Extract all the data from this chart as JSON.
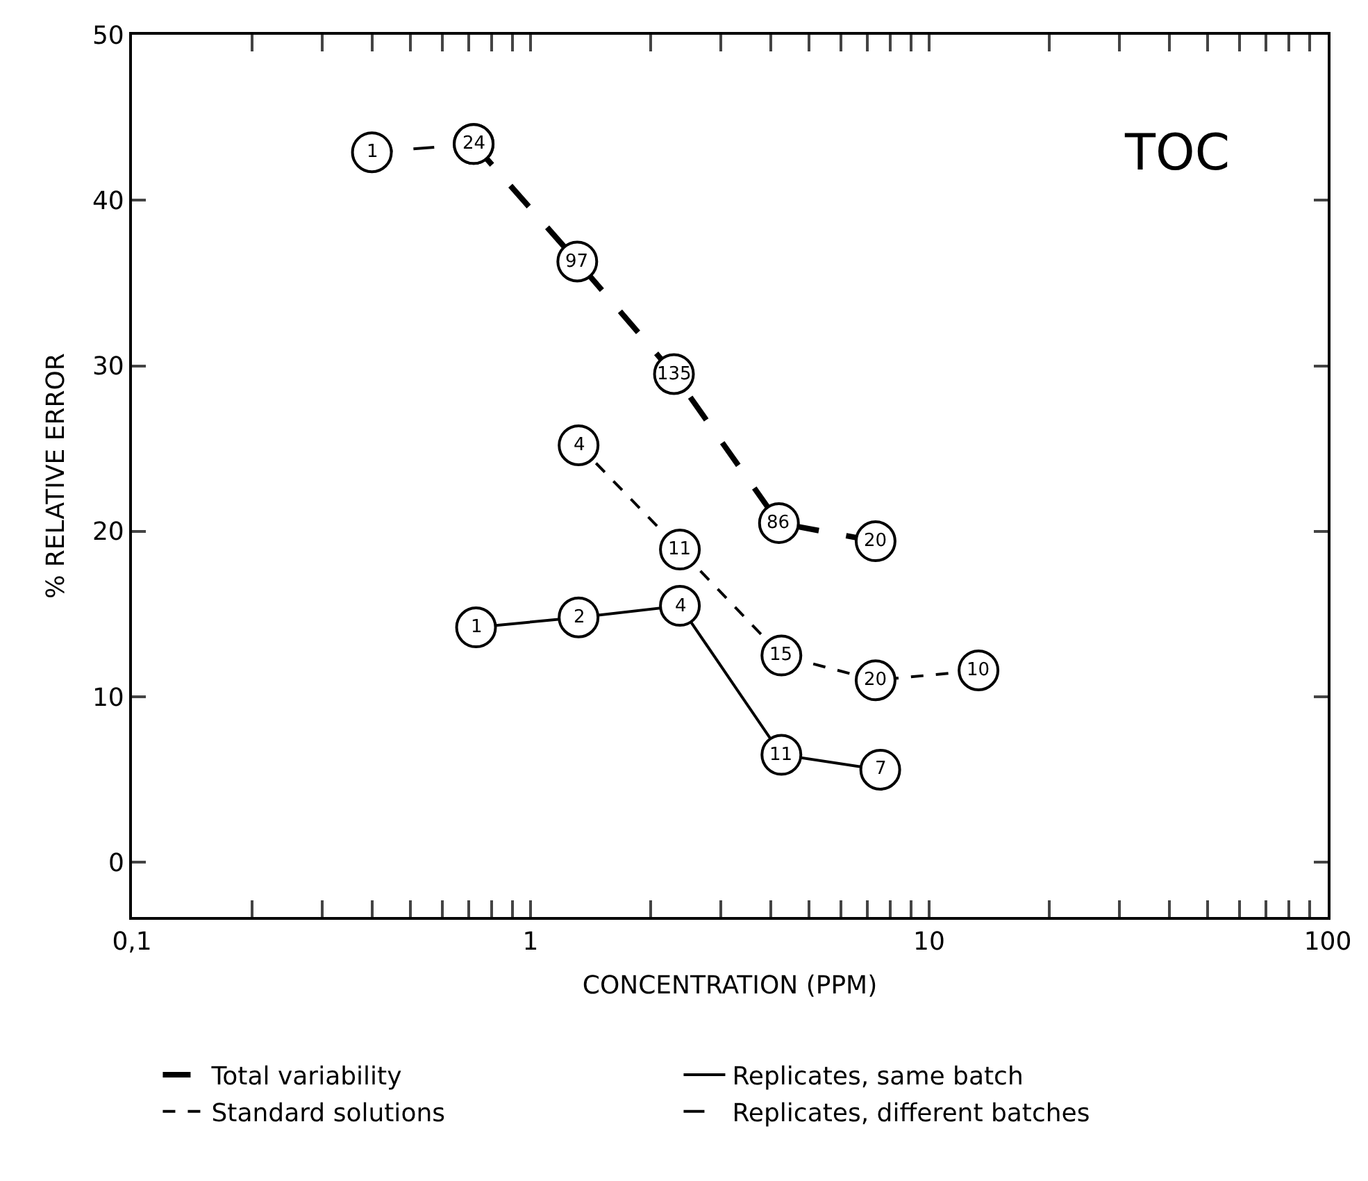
{
  "chart_data": {
    "type": "line",
    "title": "TOC",
    "xlabel": "CONCENTRATION (PPM)",
    "ylabel": "% RELATIVE ERROR",
    "log": "x",
    "marker": "circle",
    "legend": "bottom",
    "xlim": [
      0.1,
      100
    ],
    "ylim": [
      -3.3,
      50
    ],
    "xticks": [
      {
        "value": 0.1,
        "label": "0,1"
      },
      {
        "value": 0.2,
        "label": null
      },
      {
        "value": 0.3,
        "label": null
      },
      {
        "value": 0.4,
        "label": null
      },
      {
        "value": 0.5,
        "label": null
      },
      {
        "value": 0.6,
        "label": null
      },
      {
        "value": 0.7,
        "label": null
      },
      {
        "value": 0.8,
        "label": null
      },
      {
        "value": 0.9,
        "label": null
      },
      1,
      {
        "value": 2,
        "label": null
      },
      {
        "value": 3,
        "label": null
      },
      {
        "value": 4,
        "label": null
      },
      {
        "value": 5,
        "label": null
      },
      {
        "value": 6,
        "label": null
      },
      {
        "value": 7,
        "label": null
      },
      {
        "value": 8,
        "label": null
      },
      {
        "value": 9,
        "label": null
      },
      10,
      {
        "value": 20,
        "label": null
      },
      {
        "value": 30,
        "label": null
      },
      {
        "value": 40,
        "label": null
      },
      {
        "value": 50,
        "label": null
      },
      {
        "value": 60,
        "label": null
      },
      {
        "value": 70,
        "label": null
      },
      {
        "value": 80,
        "label": null
      },
      {
        "value": 90,
        "label": null
      },
      100
    ],
    "yticks": [
      0,
      10,
      20,
      30,
      40,
      50
    ],
    "series": [
      {
        "name": "Total variability",
        "color": "#000000",
        "line_style": "longdash",
        "x": [
          0.72,
          1.31,
          2.29,
          4.2,
          7.34
        ],
        "values": [
          43.4,
          36.3,
          29.5,
          20.5,
          19.4
        ]
      },
      {
        "name": "Replicates, same batch",
        "color": "#000000",
        "line_style": "solid",
        "x": [
          0.73,
          1.32,
          2.37,
          4.26,
          7.54
        ],
        "values": [
          14.2,
          14.8,
          15.5,
          6.5,
          5.6
        ]
      },
      {
        "name": "Standard solutions",
        "color": "#000000",
        "line_style": "dashed",
        "x": [
          1.32,
          2.37,
          4.26,
          7.34,
          13.3
        ],
        "values": [
          25.2,
          18.9,
          12.5,
          11.0,
          11.6
        ]
      },
      {
        "name": "Replicates, different batches",
        "color": "#000000",
        "line_style": "longdashthin",
        "x": [
          0.4,
          0.72
        ],
        "values": [
          42.9,
          43.4
        ]
      }
    ],
    "annotations": [
      {
        "text": "1",
        "x": 0.4,
        "y": 42.9
      },
      {
        "text": "24",
        "x": 0.72,
        "y": 43.4
      },
      {
        "text": "97",
        "x": 1.31,
        "y": 36.3
      },
      {
        "text": "135",
        "x": 2.29,
        "y": 29.5
      },
      {
        "text": "86",
        "x": 4.2,
        "y": 20.5
      },
      {
        "text": "20",
        "x": 7.34,
        "y": 19.4
      },
      {
        "text": "1",
        "x": 0.73,
        "y": 14.2
      },
      {
        "text": "2",
        "x": 1.32,
        "y": 14.8
      },
      {
        "text": "4",
        "x": 2.37,
        "y": 15.5
      },
      {
        "text": "11",
        "x": 4.26,
        "y": 6.5
      },
      {
        "text": "7",
        "x": 7.54,
        "y": 5.6
      },
      {
        "text": "4",
        "x": 1.32,
        "y": 25.2
      },
      {
        "text": "11",
        "x": 2.37,
        "y": 18.9
      },
      {
        "text": "15",
        "x": 4.26,
        "y": 12.5
      },
      {
        "text": "20",
        "x": 7.34,
        "y": 11.0
      },
      {
        "text": "10",
        "x": 13.3,
        "y": 11.6
      }
    ]
  }
}
